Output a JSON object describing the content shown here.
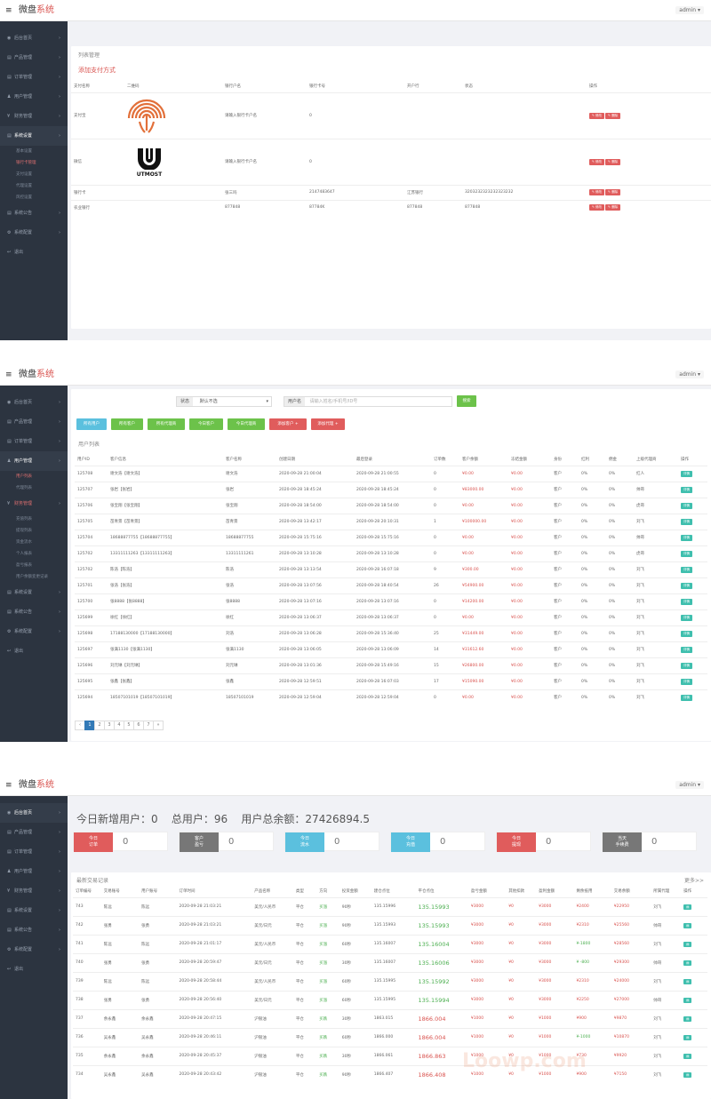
{
  "brand_text": "微盘",
  "brand_accent": "系统",
  "admin_label": "admin ▾",
  "panel1": {
    "sidebar": [
      {
        "label": "后台首页",
        "icon": "◉"
      },
      {
        "label": "产品管理",
        "icon": "▤"
      },
      {
        "label": "订单管理",
        "icon": "▤"
      },
      {
        "label": "用户管理",
        "icon": "♟"
      },
      {
        "label": "财务管理",
        "icon": "¥"
      },
      {
        "label": "系统设置",
        "icon": "▤",
        "active": true
      },
      {
        "label": "系统公告",
        "icon": "▤"
      },
      {
        "label": "系统配置",
        "icon": "⚙"
      },
      {
        "label": "退出",
        "icon": "↩"
      }
    ],
    "sub_items": [
      "基本设置",
      "银行卡管理",
      "支付设置",
      "代理设置",
      "风控设置"
    ],
    "title": "列表管理",
    "add_link": "添加支付方式",
    "columns": [
      "支付名称",
      "二维码",
      "银行户名",
      "银行卡号",
      "开户行",
      "状态",
      "操作"
    ],
    "rows": [
      {
        "c1": "支付宝",
        "c3": "请输入银行卡户名",
        "c4": "0",
        "c5": "",
        "c6": ""
      },
      {
        "c1": "微信",
        "c3": "请输入银行卡户名",
        "c4": "0",
        "c5": "",
        "c6": ""
      },
      {
        "c1": "银行卡",
        "c3": "张三吗",
        "c4": "2147483647",
        "c5": "江苏银行",
        "c6": "3203232323232323232"
      },
      {
        "c1": "农业银行",
        "c3": "877848",
        "c4": "87784K",
        "c5": "877848",
        "c6": "877848"
      }
    ],
    "edit_label": "✎ 修改",
    "delete_label": "✎ 删除",
    "utmost_text": "UTMOST"
  },
  "panel2": {
    "sidebar": [
      {
        "label": "后台首页",
        "icon": "◉"
      },
      {
        "label": "产品管理",
        "icon": "▤"
      },
      {
        "label": "订单管理",
        "icon": "▤"
      },
      {
        "label": "用户管理",
        "icon": "♟",
        "active": true
      },
      {
        "label": "财务管理",
        "icon": "¥",
        "hl": true
      },
      {
        "label": "系统设置",
        "icon": "▤"
      },
      {
        "label": "系统公告",
        "icon": "▤"
      },
      {
        "label": "系统配置",
        "icon": "⚙"
      },
      {
        "label": "退出",
        "icon": "↩"
      }
    ],
    "user_sub": [
      "用户列表",
      "代理列表"
    ],
    "finance_sub": [
      "充值列表",
      "提现列表",
      "资金流水",
      "个人报表",
      "盈亏报表",
      "用户余额变更记录"
    ],
    "filter_label": "状态",
    "filter_value": "默认不选",
    "search_label": "用户名",
    "search_placeholder": "请输入姓名/手机号/ID号",
    "search_button": "搜索",
    "buttons": [
      {
        "label": "所有用户",
        "color": "#5bc0de"
      },
      {
        "label": "所有客户",
        "color": "#6cc24a"
      },
      {
        "label": "所有代理商",
        "color": "#6cc24a"
      },
      {
        "label": "今日客户",
        "color": "#6cc24a"
      },
      {
        "label": "今日代理商",
        "color": "#6cc24a"
      },
      {
        "label": "添加客户 +",
        "color": "#e05c5c"
      },
      {
        "label": "添加代理 +",
        "color": "#e05c5c"
      }
    ],
    "list_title": "用户列表",
    "columns": [
      "用户ID",
      "客户信息",
      "客户名称",
      "创建日期",
      "最后登录",
      "订单数",
      "客户余额",
      "冻结金额",
      "身份",
      "红利",
      "佣金",
      "上级代理商",
      "操作"
    ],
    "rows": [
      [
        "125708",
        "谢文浩【谢文浩】",
        "谢文浩",
        "2020-09-28 21:00:04",
        "2020-09-28 21:00:55",
        "0",
        "¥0.00",
        "¥0.00",
        "客户",
        "0%",
        "0%",
        "红人",
        "详情"
      ],
      [
        "125707",
        "张岩【张岩】",
        "张岩",
        "2020-09-28 18:45:24",
        "2020-09-28 18:45:24",
        "0",
        "¥83000.00",
        "¥0.00",
        "客户",
        "0%",
        "0%",
        "帅哥",
        "详情"
      ],
      [
        "125706",
        "张宝翔【张宝翔】",
        "张宝翔",
        "2020-09-28 18:54:00",
        "2020-09-28 18:54:00",
        "0",
        "¥0.00",
        "¥0.00",
        "客户",
        "0%",
        "0%",
        "虎哥",
        "详情"
      ],
      [
        "125705",
        "苗青景【苗青景】",
        "苗青景",
        "2020-09-28 13:42:17",
        "2020-09-28 20:10:31",
        "1",
        "¥100000.00",
        "¥0.00",
        "客户",
        "0%",
        "0%",
        "刘飞",
        "详情"
      ],
      [
        "125704",
        "18688877755【18688877755】",
        "18688877755",
        "2020-09-28 15:75:16",
        "2020-09-28 15:75:16",
        "0",
        "¥0.00",
        "¥0.00",
        "客户",
        "0%",
        "0%",
        "帅哥",
        "详情"
      ],
      [
        "125702",
        "13311111263【13311111263】",
        "13311111261",
        "2020-09-28 13:10:28",
        "2020-09-28 13:10:28",
        "0",
        "¥0.00",
        "¥0.00",
        "客户",
        "0%",
        "0%",
        "虎哥",
        "详情"
      ],
      [
        "125702",
        "陈浩【陈浩】",
        "陈浩",
        "2020-09-28 13:13:54",
        "2020-09-28 16:07:18",
        "9",
        "¥300.00",
        "¥0.00",
        "客户",
        "0%",
        "0%",
        "刘飞",
        "详情"
      ],
      [
        "125701",
        "张浩【张浩】",
        "张浩",
        "2020-09-28 13:07:56",
        "2020-09-28 18:40:54",
        "26",
        "¥54900.00",
        "¥0.00",
        "客户",
        "0%",
        "0%",
        "刘飞",
        "详情"
      ],
      [
        "125700",
        "张8888【张8888】",
        "张8888",
        "2020-09-28 13:07:16",
        "2020-09-28 13:07:16",
        "0",
        "¥14200.00",
        "¥0.00",
        "客户",
        "0%",
        "0%",
        "刘飞",
        "详情"
      ],
      [
        "125699",
        "徐红【徐红】",
        "徐红",
        "2020-09-28 13:06:37",
        "2020-09-28 13:06:37",
        "0",
        "¥0.00",
        "¥0.00",
        "客户",
        "0%",
        "0%",
        "刘飞",
        "详情"
      ],
      [
        "125698",
        "17188130000【17188130000】",
        "刘浩",
        "2020-09-28 13:06:28",
        "2020-09-28 15:36:40",
        "25",
        "¥31449.00",
        "¥0.00",
        "客户",
        "0%",
        "0%",
        "刘飞",
        "详情"
      ],
      [
        "125697",
        "张满1130【张满1130】",
        "张满1130",
        "2020-09-28 13:06:05",
        "2020-09-28 13:06:09",
        "14",
        "¥31612.60",
        "¥0.00",
        "客户",
        "0%",
        "0%",
        "刘飞",
        "详情"
      ],
      [
        "125696",
        "刘元琳【刘元琳】",
        "刘元琳",
        "2020-09-28 13:01:36",
        "2020-09-28 15:49:16",
        "15",
        "¥26800.00",
        "¥0.00",
        "客户",
        "0%",
        "0%",
        "刘飞",
        "详情"
      ],
      [
        "125695",
        "张鑫【张鑫】",
        "张鑫",
        "2020-09-28 12:59:51",
        "2020-09-28 16:07:03",
        "17",
        "¥15090.00",
        "¥0.00",
        "客户",
        "0%",
        "0%",
        "刘飞",
        "详情"
      ],
      [
        "125694",
        "18507101019【18507101019】",
        "18507101019",
        "2020-09-28 12:59:04",
        "2020-09-28 12:59:04",
        "0",
        "¥0.00",
        "¥0.00",
        "客户",
        "0%",
        "0%",
        "刘飞",
        "详情"
      ]
    ],
    "pages": [
      "‹",
      "1",
      "2",
      "3",
      "4",
      "5",
      "6",
      "7",
      "»"
    ]
  },
  "panel3": {
    "sidebar": [
      {
        "label": "后台首页",
        "icon": "◉",
        "active": true
      },
      {
        "label": "产品管理",
        "icon": "▤"
      },
      {
        "label": "订单管理",
        "icon": "▤"
      },
      {
        "label": "用户管理",
        "icon": "♟"
      },
      {
        "label": "财务管理",
        "icon": "¥"
      },
      {
        "label": "系统设置",
        "icon": "▤"
      },
      {
        "label": "系统公告",
        "icon": "▤"
      },
      {
        "label": "系统配置",
        "icon": "⚙"
      },
      {
        "label": "退出",
        "icon": "↩"
      }
    ],
    "summary": "今日新增用户：0    总用户：96    用户总余额：27426894.5",
    "stats": [
      {
        "label": "今日\n订单",
        "value": "0",
        "color": "#e05c5c"
      },
      {
        "label": "客户\n盈亏",
        "value": "0",
        "color": "#777"
      },
      {
        "label": "今日\n流水",
        "value": "0",
        "color": "#5bc0de"
      },
      {
        "label": "今日\n充值",
        "value": "0",
        "color": "#5bc0de"
      },
      {
        "label": "今日\n提现",
        "value": "0",
        "color": "#e05c5c"
      },
      {
        "label": "当天\n手续费",
        "value": "0",
        "color": "#777"
      }
    ],
    "list_title": "最新交易记录",
    "more_link": "更多>>",
    "columns": [
      "订单编号",
      "交易账号",
      "用户账号",
      "订单时间",
      "产品名称",
      "类型",
      "方向",
      "投资金额",
      "建仓点位",
      "平仓点位",
      "盈亏金额",
      "其他扣款",
      "盈利金额",
      "剩余抵用",
      "交易余额",
      "所属代理",
      "操作"
    ],
    "rows": [
      [
        "743",
        "陈远",
        "陈远",
        "2020-09-28 21:03:21",
        "美元/人民币",
        "平仓",
        "买涨",
        "90秒",
        "135.15996",
        "135.15993",
        "¥3000",
        "¥0",
        "¥3000",
        "¥2400",
        "¥22950",
        "刘飞",
        "▤"
      ],
      [
        "742",
        "张勇",
        "张勇",
        "2020-09-28 21:03:21",
        "美元/日元",
        "平仓",
        "买涨",
        "90秒",
        "135.15993",
        "135.15993",
        "¥3000",
        "¥0",
        "¥3000",
        "¥2310",
        "¥25560",
        "帅哥",
        "▤"
      ],
      [
        "741",
        "陈远",
        "陈远",
        "2020-09-28 21:01:17",
        "美元/人民币",
        "平仓",
        "买涨",
        "60秒",
        "135.16007",
        "135.16004",
        "¥3000",
        "¥0",
        "¥3000",
        "¥-1800",
        "¥28560",
        "刘飞",
        "▤"
      ],
      [
        "740",
        "张勇",
        "张勇",
        "2020-09-28 20:59:47",
        "美元/日元",
        "平仓",
        "买涨",
        "30秒",
        "135.16007",
        "135.16006",
        "¥3000",
        "¥0",
        "¥3000",
        "¥ -800",
        "¥29300",
        "帅哥",
        "▤"
      ],
      [
        "739",
        "陈远",
        "陈远",
        "2020-09-28 20:58:44",
        "美元/人民币",
        "平仓",
        "买涨",
        "60秒",
        "135.15995",
        "135.15992",
        "¥3000",
        "¥0",
        "¥3000",
        "¥2310",
        "¥24000",
        "刘飞",
        "▤"
      ],
      [
        "738",
        "张勇",
        "张勇",
        "2020-09-28 20:56:40",
        "美元/日元",
        "平仓",
        "买涨",
        "60秒",
        "135.15995",
        "135.15994",
        "¥3000",
        "¥0",
        "¥3000",
        "¥2250",
        "¥27000",
        "帅哥",
        "▤"
      ],
      [
        "737",
        "余永鑫",
        "余永鑫",
        "2020-09-28 20:47:15",
        "沪银油",
        "平仓",
        "买跌",
        "30秒",
        "1863.015",
        "1866.004",
        "¥1000",
        "¥0",
        "¥1000",
        "¥900",
        "¥9870",
        "刘飞",
        "▤"
      ],
      [
        "736",
        "吴永鑫",
        "吴永鑫",
        "2020-09-28 20:46:11",
        "沪银油",
        "平仓",
        "买跌",
        "60秒",
        "1866.000",
        "1866.004",
        "¥1000",
        "¥0",
        "¥1000",
        "¥-1000",
        "¥10870",
        "刘飞",
        "▤"
      ],
      [
        "735",
        "余永鑫",
        "余永鑫",
        "2020-09-28 20:45:37",
        "沪银油",
        "平仓",
        "买跌",
        "30秒",
        "1866.061",
        "1866.863",
        "¥1000",
        "¥0",
        "¥1000",
        "¥730",
        "¥9920",
        "刘飞",
        "▤"
      ],
      [
        "734",
        "吴永鑫",
        "吴永鑫",
        "2020-09-28 20:43:42",
        "沪银油",
        "平仓",
        "买跌",
        "90秒",
        "1866.407",
        "1866.408",
        "¥1000",
        "¥0",
        "¥1000",
        "¥900",
        "¥7150",
        "刘飞",
        "▤"
      ]
    ],
    "watermark": "Loowp.com"
  }
}
